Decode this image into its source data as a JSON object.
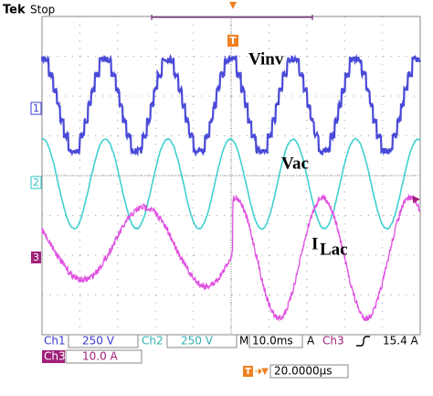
{
  "header": {
    "brand": "Tek",
    "status": "Stop"
  },
  "labels": {
    "vinv": "Vinv",
    "vac": "Vac",
    "ilac_main": "I",
    "ilac_sub": "Lac"
  },
  "markers": {
    "ch1": "1",
    "ch2": "2",
    "ch3": "3",
    "trigger": "T"
  },
  "status_bar": {
    "ch1": {
      "name": "Ch1",
      "scale": "250 V"
    },
    "ch2": {
      "name": "Ch2",
      "scale": "250 V"
    },
    "timebase": {
      "prefix": "M",
      "value": "10.0ms"
    },
    "trigger": {
      "mode": "A",
      "source": "Ch3",
      "level": "15.4 A"
    },
    "ch3": {
      "name": "Ch3",
      "scale": "10.0 A"
    },
    "position": {
      "value": "20.0000µs"
    }
  }
}
